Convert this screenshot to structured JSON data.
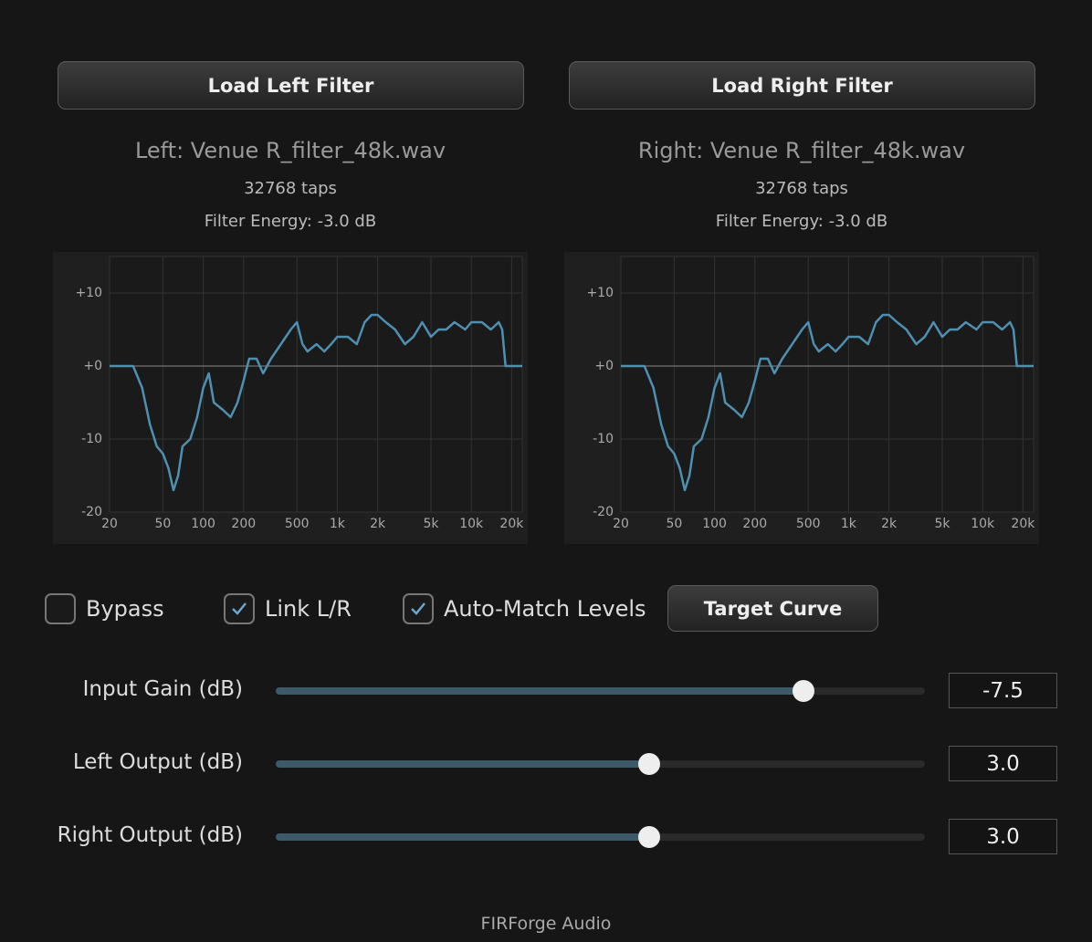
{
  "filters": [
    {
      "button": "Load Left Filter",
      "file": "Left: Venue R_filter_48k.wav",
      "taps": "32768 taps",
      "energy": "Filter Energy: -3.0 dB",
      "chart_data": {
        "type": "line",
        "log_x": true,
        "grid": true,
        "color": "#4f8fb0",
        "x": [
          20,
          30,
          35,
          40,
          45,
          50,
          55,
          60,
          65,
          70,
          80,
          90,
          100,
          110,
          120,
          140,
          160,
          180,
          200,
          220,
          250,
          280,
          320,
          380,
          450,
          500,
          550,
          600,
          700,
          800,
          900,
          1000,
          1200,
          1400,
          1600,
          1800,
          2000,
          2300,
          2700,
          3200,
          3700,
          4300,
          5000,
          5700,
          6500,
          7500,
          9000,
          10000,
          12000,
          14000,
          16000,
          17000,
          18000,
          24000
        ],
        "values": [
          0,
          0,
          -3,
          -8,
          -11,
          -12,
          -14,
          -17,
          -15,
          -11,
          -10,
          -7,
          -3,
          -1,
          -5,
          -6,
          -7,
          -5,
          -2,
          1,
          1,
          -1,
          1,
          3,
          5,
          6,
          3,
          2,
          3,
          2,
          3,
          4,
          4,
          3,
          6,
          7,
          7,
          6,
          5,
          3,
          4,
          6,
          4,
          5,
          5,
          6,
          5,
          6,
          6,
          5,
          6,
          5,
          0,
          0
        ],
        "xlim": [
          20,
          24000
        ],
        "ylim": [
          -20,
          15
        ],
        "xticks": [
          20,
          50,
          100,
          200,
          500,
          {
            "value": 1000,
            "label": "1k"
          },
          {
            "value": 2000,
            "label": "2k"
          },
          {
            "value": 5000,
            "label": "5k"
          },
          {
            "value": 10000,
            "label": "10k"
          },
          {
            "value": 20000,
            "label": "20k"
          }
        ],
        "yticks": [
          -20,
          -10,
          {
            "value": 0,
            "label": "+0"
          },
          {
            "value": 10,
            "label": "+10"
          }
        ]
      }
    },
    {
      "button": "Load Right Filter",
      "file": "Right: Venue R_filter_48k.wav",
      "taps": "32768 taps",
      "energy": "Filter Energy: -3.0 dB",
      "chart_data": {
        "type": "line",
        "log_x": true,
        "grid": true,
        "color": "#4f8fb0",
        "x": [
          20,
          30,
          35,
          40,
          45,
          50,
          55,
          60,
          65,
          70,
          80,
          90,
          100,
          110,
          120,
          140,
          160,
          180,
          200,
          220,
          250,
          280,
          320,
          380,
          450,
          500,
          550,
          600,
          700,
          800,
          900,
          1000,
          1200,
          1400,
          1600,
          1800,
          2000,
          2300,
          2700,
          3200,
          3700,
          4300,
          5000,
          5700,
          6500,
          7500,
          9000,
          10000,
          12000,
          14000,
          16000,
          17000,
          18000,
          24000
        ],
        "values": [
          0,
          0,
          -3,
          -8,
          -11,
          -12,
          -14,
          -17,
          -15,
          -11,
          -10,
          -7,
          -3,
          -1,
          -5,
          -6,
          -7,
          -5,
          -2,
          1,
          1,
          -1,
          1,
          3,
          5,
          6,
          3,
          2,
          3,
          2,
          3,
          4,
          4,
          3,
          6,
          7,
          7,
          6,
          5,
          3,
          4,
          6,
          4,
          5,
          5,
          6,
          5,
          6,
          6,
          5,
          6,
          5,
          0,
          0
        ],
        "xlim": [
          20,
          24000
        ],
        "ylim": [
          -20,
          15
        ],
        "xticks": [
          20,
          50,
          100,
          200,
          500,
          {
            "value": 1000,
            "label": "1k"
          },
          {
            "value": 2000,
            "label": "2k"
          },
          {
            "value": 5000,
            "label": "5k"
          },
          {
            "value": 10000,
            "label": "10k"
          },
          {
            "value": 20000,
            "label": "20k"
          }
        ],
        "yticks": [
          -20,
          -10,
          {
            "value": 0,
            "label": "+0"
          },
          {
            "value": 10,
            "label": "+10"
          }
        ]
      }
    }
  ],
  "checkboxes": [
    {
      "label": "Bypass",
      "checked": false
    },
    {
      "label": "Link L/R",
      "checked": true
    },
    {
      "label": "Auto-Match Levels",
      "checked": true
    }
  ],
  "target_button": "Target Curve",
  "sliders": [
    {
      "label": "Input Gain (dB)",
      "value": -7.5,
      "range": [
        -40,
        0
      ]
    },
    {
      "label": "Left Output (dB)",
      "value": {
        "value": 3,
        "label": "3.0"
      },
      "range": [
        -20,
        20
      ]
    },
    {
      "label": "Right Output (dB)",
      "value": {
        "value": 3,
        "label": "3.0"
      },
      "range": [
        -20,
        20
      ]
    }
  ],
  "footer": "FIRForge Audio"
}
